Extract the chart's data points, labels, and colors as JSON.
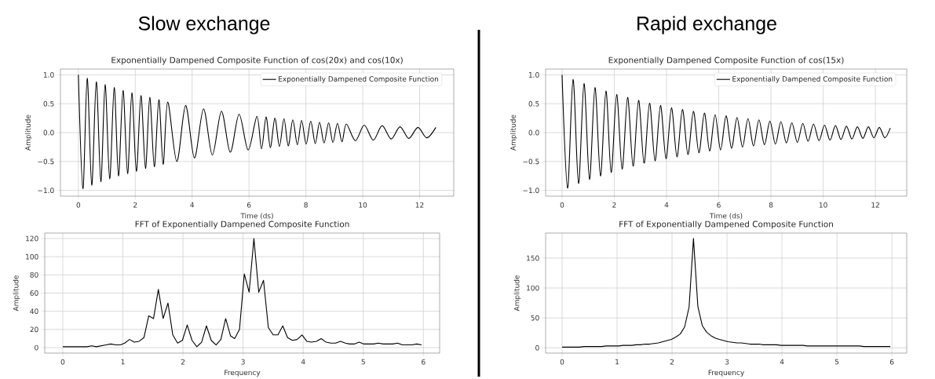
{
  "chart_data": [
    {
      "type": "line",
      "title": "Exponentially Dampened Composite Function of cos(20x) and cos(10x)",
      "xlabel": "Time (ds)",
      "ylabel": "Amplitude",
      "annotations": [
        "Slow exchange"
      ],
      "xlim": [
        -0.63,
        13.2
      ],
      "ylim": [
        -1.1,
        1.1
      ],
      "xticks": [
        0,
        2,
        4,
        6,
        8,
        10,
        12
      ],
      "yticks": [
        {
          "value": -1,
          "label": "−1.0"
        },
        {
          "value": -0.5,
          "label": "−0.5"
        },
        {
          "value": 0,
          "label": "0.0"
        },
        {
          "value": 0.5,
          "label": "0.5"
        },
        {
          "value": 1,
          "label": "1.0"
        }
      ],
      "grid": true,
      "legend": "top right",
      "series": [
        {
          "name": "Exponentially Dampened Composite Function",
          "color": "#000000",
          "x": [
            0,
            0.16,
            0.31,
            0.47,
            0.63,
            0.79,
            0.94,
            1.1,
            1.26,
            1.41,
            1.57,
            1.73,
            1.88,
            2.04,
            2.2,
            2.36,
            2.51,
            2.67,
            2.83,
            2.98,
            3.14,
            3.46,
            3.77,
            4.08,
            4.4,
            4.71,
            5.03,
            5.34,
            5.65,
            5.97,
            6.28,
            6.44,
            6.6,
            6.75,
            6.91,
            7.07,
            7.23,
            7.38,
            7.54,
            7.7,
            7.85,
            8.01,
            8.17,
            8.33,
            8.48,
            8.64,
            8.8,
            8.95,
            9.11,
            9.27,
            9.42,
            9.74,
            10.05,
            10.37,
            10.68,
            11.0,
            11.31,
            11.62,
            11.94,
            12.25,
            12.57
          ],
          "values": [
            1.0,
            -0.97,
            0.94,
            -0.91,
            0.88,
            -0.85,
            0.83,
            -0.8,
            0.78,
            -0.75,
            0.73,
            -0.71,
            0.69,
            -0.67,
            0.64,
            -0.62,
            0.61,
            -0.59,
            0.57,
            -0.55,
            0.53,
            -0.5,
            0.47,
            -0.44,
            0.41,
            -0.39,
            0.37,
            -0.34,
            0.32,
            -0.3,
            0.28,
            -0.28,
            0.27,
            -0.26,
            0.25,
            -0.24,
            0.24,
            -0.23,
            0.22,
            -0.21,
            0.21,
            -0.2,
            0.2,
            -0.19,
            0.18,
            -0.18,
            0.17,
            -0.17,
            0.16,
            -0.16,
            0.15,
            -0.14,
            0.13,
            -0.13,
            0.12,
            -0.11,
            0.1,
            -0.1,
            0.09,
            -0.09,
            0.09
          ]
        }
      ]
    },
    {
      "type": "line",
      "title": "Exponentially Dampened Composite Function of cos(15x)",
      "xlabel": "Time (ds)",
      "ylabel": "Amplitude",
      "annotations": [
        "Rapid exchange"
      ],
      "xlim": [
        -0.63,
        13.2
      ],
      "ylim": [
        -1.1,
        1.1
      ],
      "xticks": [
        0,
        2,
        4,
        6,
        8,
        10,
        12
      ],
      "yticks": [
        {
          "value": -1,
          "label": "−1.0"
        },
        {
          "value": -0.5,
          "label": "−0.5"
        },
        {
          "value": 0,
          "label": "0.0"
        },
        {
          "value": 0.5,
          "label": "0.5"
        },
        {
          "value": 1,
          "label": "1.0"
        }
      ],
      "grid": true,
      "legend": "top right",
      "series": [
        {
          "name": "Exponentially Dampened Composite Function",
          "color": "#000000",
          "x": [
            0,
            0.21,
            0.42,
            0.63,
            0.84,
            1.05,
            1.26,
            1.47,
            1.68,
            1.88,
            2.09,
            2.3,
            2.51,
            2.72,
            2.93,
            3.14,
            3.35,
            3.56,
            3.77,
            3.98,
            4.19,
            4.4,
            4.61,
            4.82,
            5.03,
            5.24,
            5.45,
            5.65,
            5.86,
            6.07,
            6.28,
            6.49,
            6.7,
            6.91,
            7.12,
            7.33,
            7.54,
            7.75,
            7.96,
            8.17,
            8.38,
            8.59,
            8.8,
            9.01,
            9.22,
            9.42,
            9.63,
            9.84,
            10.05,
            10.26,
            10.47,
            10.68,
            10.89,
            11.1,
            11.31,
            11.52,
            11.73,
            11.94,
            12.15,
            12.36,
            12.57
          ],
          "values": [
            1.0,
            -0.96,
            0.92,
            -0.88,
            0.85,
            -0.81,
            0.78,
            -0.75,
            0.72,
            -0.69,
            0.66,
            -0.63,
            0.61,
            -0.58,
            0.56,
            -0.53,
            0.51,
            -0.49,
            0.47,
            -0.45,
            0.43,
            -0.42,
            0.4,
            -0.38,
            0.37,
            -0.35,
            0.34,
            -0.32,
            0.31,
            -0.3,
            0.29,
            -0.27,
            0.26,
            -0.25,
            0.24,
            -0.23,
            0.22,
            -0.21,
            0.2,
            -0.2,
            0.19,
            -0.18,
            0.17,
            -0.17,
            0.16,
            -0.15,
            0.15,
            -0.14,
            0.13,
            -0.13,
            0.12,
            -0.12,
            0.11,
            -0.11,
            0.1,
            -0.1,
            0.1,
            -0.09,
            0.09,
            -0.09,
            0.08
          ]
        }
      ]
    },
    {
      "type": "line",
      "title": "FFT of Exponentially Dampened Composite Function",
      "xlabel": "Frequency",
      "ylabel": "Amplitude",
      "xlim": [
        -0.3,
        6.27
      ],
      "ylim": [
        -6,
        126
      ],
      "xticks": [
        0,
        1,
        2,
        3,
        4,
        5,
        6
      ],
      "yticks": [
        0,
        20,
        40,
        60,
        80,
        100,
        120
      ],
      "grid": true,
      "series": [
        {
          "color": "#000000",
          "x": [
            0,
            0.08,
            0.16,
            0.24,
            0.32,
            0.4,
            0.48,
            0.56,
            0.64,
            0.72,
            0.8,
            0.88,
            0.96,
            1.03,
            1.11,
            1.19,
            1.27,
            1.35,
            1.43,
            1.51,
            1.59,
            1.67,
            1.75,
            1.83,
            1.91,
            1.99,
            2.07,
            2.15,
            2.23,
            2.31,
            2.39,
            2.47,
            2.55,
            2.63,
            2.71,
            2.79,
            2.86,
            2.94,
            3.02,
            3.1,
            3.18,
            3.26,
            3.34,
            3.42,
            3.5,
            3.58,
            3.66,
            3.74,
            3.82,
            3.9,
            3.98,
            4.06,
            4.14,
            4.22,
            4.3,
            4.38,
            4.46,
            4.54,
            4.62,
            4.7,
            4.77,
            4.85,
            4.93,
            5.01,
            5.09,
            5.17,
            5.25,
            5.33,
            5.41,
            5.49,
            5.57,
            5.65,
            5.73,
            5.81,
            5.89,
            5.97
          ],
          "values": [
            1,
            1,
            1,
            1,
            1,
            1,
            2,
            1,
            2,
            3,
            4,
            3,
            3,
            5,
            9,
            6,
            7,
            11,
            35,
            32,
            64,
            32,
            49,
            14,
            5,
            8,
            25,
            8,
            1,
            6,
            24,
            8,
            3,
            9,
            32,
            13,
            10,
            20,
            81,
            61,
            120,
            61,
            74,
            22,
            14,
            14,
            24,
            11,
            8,
            9,
            14,
            7,
            6,
            7,
            10,
            6,
            5,
            5,
            7,
            5,
            4,
            4,
            6,
            4,
            4,
            4,
            5,
            4,
            4,
            4,
            5,
            3,
            3,
            3,
            4,
            3
          ]
        }
      ]
    },
    {
      "type": "line",
      "title": "FFT of Exponentially Dampened Composite Function",
      "xlabel": "Frequency",
      "ylabel": "Amplitude",
      "xlim": [
        -0.3,
        6.27
      ],
      "ylim": [
        -9,
        192
      ],
      "xticks": [
        0,
        1,
        2,
        3,
        4,
        5,
        6
      ],
      "yticks": [
        0,
        50,
        100,
        150
      ],
      "grid": true,
      "series": [
        {
          "color": "#000000",
          "x": [
            0,
            0.08,
            0.16,
            0.24,
            0.32,
            0.4,
            0.48,
            0.56,
            0.64,
            0.72,
            0.8,
            0.88,
            0.96,
            1.03,
            1.11,
            1.19,
            1.27,
            1.35,
            1.43,
            1.51,
            1.59,
            1.67,
            1.75,
            1.83,
            1.91,
            1.99,
            2.07,
            2.15,
            2.23,
            2.31,
            2.39,
            2.47,
            2.55,
            2.63,
            2.71,
            2.79,
            2.86,
            2.94,
            3.02,
            3.1,
            3.18,
            3.26,
            3.34,
            3.42,
            3.5,
            3.58,
            3.66,
            3.74,
            3.82,
            3.9,
            3.98,
            4.06,
            4.14,
            4.22,
            4.3,
            4.38,
            4.46,
            4.54,
            4.62,
            4.7,
            4.77,
            4.85,
            4.93,
            5.01,
            5.09,
            5.17,
            5.25,
            5.33,
            5.41,
            5.49,
            5.57,
            5.65,
            5.73,
            5.81,
            5.89,
            5.97
          ],
          "values": [
            1,
            1,
            1,
            1,
            1,
            2,
            2,
            2,
            2,
            2,
            3,
            3,
            3,
            3,
            4,
            4,
            4,
            5,
            5,
            6,
            6,
            7,
            8,
            10,
            12,
            14,
            18,
            23,
            35,
            68,
            183,
            69,
            37,
            26,
            20,
            16,
            14,
            12,
            10,
            9,
            8,
            8,
            7,
            6,
            6,
            6,
            5,
            5,
            5,
            5,
            4,
            4,
            4,
            4,
            4,
            4,
            3,
            3,
            3,
            3,
            3,
            3,
            3,
            3,
            3,
            3,
            3,
            3,
            3,
            2,
            2,
            2,
            2,
            2,
            2,
            2
          ]
        }
      ]
    }
  ]
}
